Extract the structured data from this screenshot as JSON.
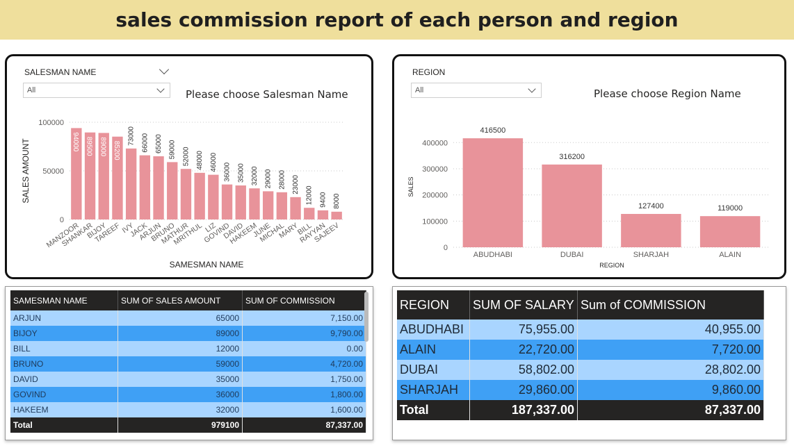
{
  "header": {
    "title": "sales commission report of each person and region"
  },
  "left_panel": {
    "slicer_label": "SALESMAN NAME",
    "slicer_value": "All",
    "prompt": "Please choose Salesman Name"
  },
  "right_panel": {
    "slicer_label": "REGION",
    "slicer_value": "All",
    "prompt": "Please choose Region Name"
  },
  "colors": {
    "bar": "#e8939a",
    "header_bg": "#efdf9c",
    "table_dark": "#3fa0f5",
    "table_light": "#a9d5ff",
    "table_header": "#252423"
  },
  "chart_data": [
    {
      "type": "bar",
      "xlabel": "SAMESMAN NAME",
      "ylabel": "SALES AMOUNT",
      "ylim": [
        0,
        100000
      ],
      "yticks": [
        0,
        50000,
        100000
      ],
      "categories": [
        "MANZOOR",
        "SHANKAR",
        "BIJOY",
        "TAREEF",
        "IVY",
        "JACK",
        "ARJUN",
        "BRUNO",
        "MATHUR",
        "MRITHUL",
        "LIZ",
        "GOVIND",
        "DAVID",
        "HAKEEM",
        "JUNE",
        "MICHAL",
        "MARY",
        "BILL",
        "RAYYAN",
        "SAJEEV"
      ],
      "values": [
        94000,
        89500,
        89000,
        85200,
        73000,
        66000,
        65000,
        59000,
        52000,
        48000,
        46000,
        36000,
        35000,
        32000,
        29000,
        28000,
        23000,
        12000,
        9400,
        8000
      ],
      "value_labels": [
        "94000",
        "89500",
        "89000",
        "85200",
        "73000",
        "66000",
        "65000",
        "59000",
        "52000",
        "48000",
        "46000",
        "36000",
        "35000",
        "32000",
        "29000",
        "28000",
        "23000",
        "12000",
        "9400",
        "8000"
      ],
      "grid": true
    },
    {
      "type": "bar",
      "xlabel": "REGION",
      "ylabel": "SALES",
      "ylim": [
        0,
        430000
      ],
      "yticks": [
        0,
        100000,
        200000,
        300000,
        400000
      ],
      "categories": [
        "ABUDHABI",
        "DUBAI",
        "SHARJAH",
        "ALAIN"
      ],
      "values": [
        416500,
        316200,
        127400,
        119000
      ],
      "value_labels": [
        "416500",
        "316200",
        "127400",
        "119000"
      ],
      "grid": true
    }
  ],
  "table_salesman": {
    "headers": [
      "SAMESMAN NAME",
      "SUM OF SALES AMOUNT",
      "SUM OF COMMISSION"
    ],
    "rows": [
      [
        "ARJUN",
        "65000",
        "7,150.00"
      ],
      [
        "BIJOY",
        "89000",
        "9,790.00"
      ],
      [
        "BILL",
        "12000",
        "0.00"
      ],
      [
        "BRUNO",
        "59000",
        "4,720.00"
      ],
      [
        "DAVID",
        "35000",
        "1,750.00"
      ],
      [
        "GOVIND",
        "36000",
        "1,800.00"
      ],
      [
        "HAKEEM",
        "32000",
        "1,600.00"
      ]
    ],
    "total": [
      "Total",
      "979100",
      "87,337.00"
    ]
  },
  "table_region": {
    "headers": [
      "REGION",
      "SUM OF SALARY",
      "Sum of COMMISSION"
    ],
    "rows": [
      [
        "ABUDHABI",
        "75,955.00",
        "40,955.00"
      ],
      [
        "ALAIN",
        "22,720.00",
        "7,720.00"
      ],
      [
        "DUBAI",
        "58,802.00",
        "28,802.00"
      ],
      [
        "SHARJAH",
        "29,860.00",
        "9,860.00"
      ]
    ],
    "total": [
      "Total",
      "187,337.00",
      "87,337.00"
    ]
  }
}
